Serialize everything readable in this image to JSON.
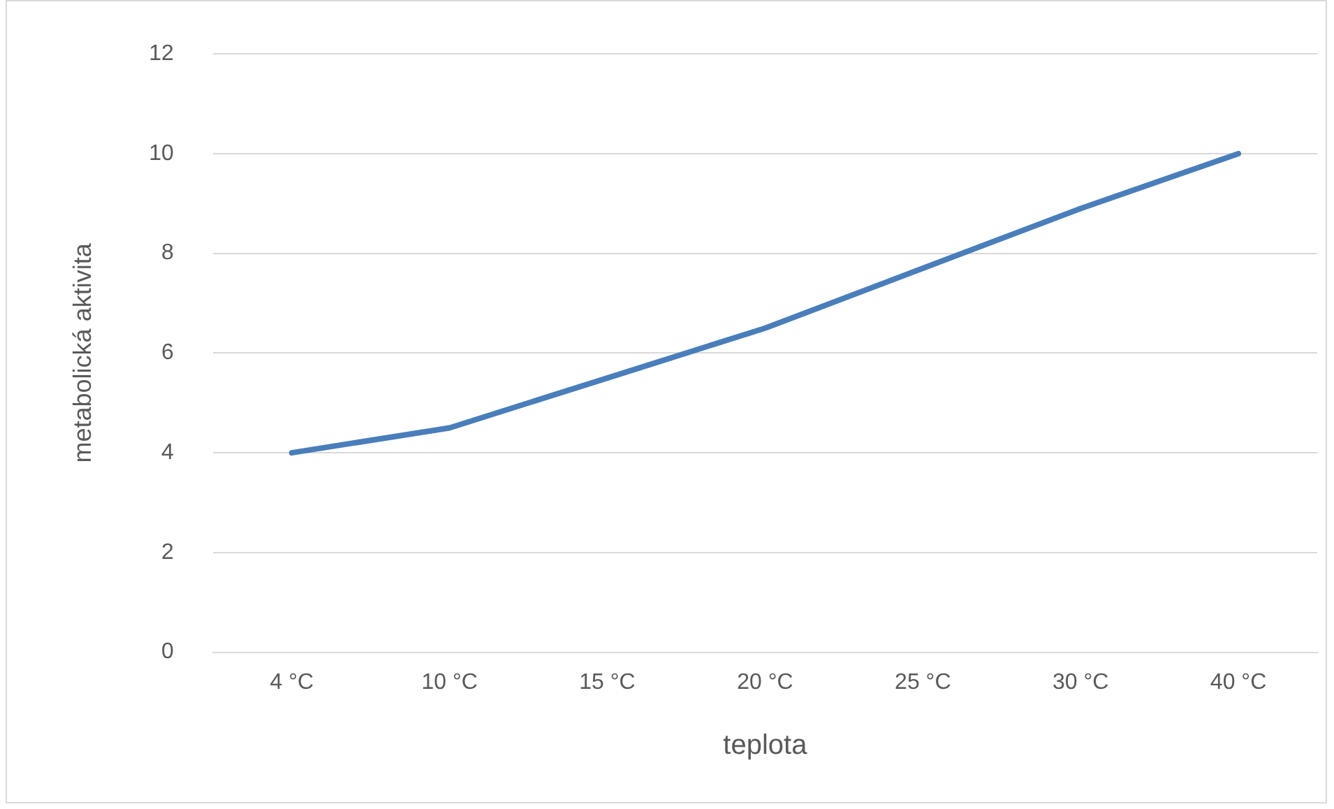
{
  "chart_data": {
    "type": "line",
    "xlabel": "teplota",
    "ylabel": "metabolická aktivita",
    "categories": [
      "4 °C",
      "10 °C",
      "15 °C",
      "20 °C",
      "25 °C",
      "30 °C",
      "40 °C"
    ],
    "series": [
      {
        "color": "#4a7ebb",
        "values": [
          4,
          4.5,
          5.5,
          6.5,
          7.7,
          8.9,
          10
        ]
      }
    ],
    "ylim": [
      0,
      12
    ],
    "yticks": [
      0,
      2,
      4,
      6,
      8,
      10,
      12
    ],
    "grid": "y",
    "legend": false,
    "marker": "none",
    "line_style": "solid"
  }
}
